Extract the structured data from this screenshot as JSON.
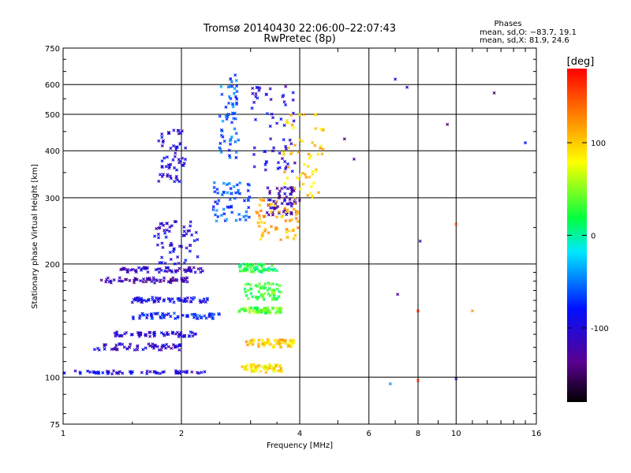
{
  "chart_data": {
    "type": "scatter",
    "title": "Tromsø 20140430 22:06:00–22:07:43",
    "subtitle": "RwPretec (8p)",
    "xlabel": "Frequency [MHz]",
    "ylabel": "Stationary phase Virtual Height [km]",
    "x_scale": "log",
    "y_scale": "log",
    "xlim": [
      1,
      16
    ],
    "ylim": [
      75,
      750
    ],
    "x_ticks": [
      "1",
      "2",
      "4",
      "6",
      "8",
      "10",
      "16"
    ],
    "y_ticks": [
      "75",
      "100",
      "200",
      "300",
      "400",
      "500",
      "600",
      "750"
    ],
    "grid": true,
    "stats": {
      "header": "Phases",
      "line_o": "mean, sd,O: −83.7, 19.1",
      "line_x": "mean, sd,X:  81.9, 24.6"
    },
    "colorbar": {
      "label": "[deg]",
      "range": [
        -180,
        180
      ],
      "ticks": [
        "100",
        "0",
        "-100"
      ],
      "colormap": "rainbow (black→purple→blue→cyan→green→yellow→red)"
    },
    "series": [
      {
        "mode": "O",
        "traces": [
          {
            "x": [
              1.0,
              2.3
            ],
            "y": [
              102,
              104
            ],
            "phase": -100
          },
          {
            "x": [
              1.2,
              2.0
            ],
            "y": [
              118,
              123
            ],
            "phase": -110
          },
          {
            "x": [
              1.35,
              2.2
            ],
            "y": [
              128,
              132
            ],
            "phase": -100
          },
          {
            "x": [
              1.5,
              2.5
            ],
            "y": [
              143,
              148
            ],
            "phase": -80
          },
          {
            "x": [
              1.5,
              2.4
            ],
            "y": [
              158,
              163
            ],
            "phase": -90
          },
          {
            "x": [
              1.25,
              2.1
            ],
            "y": [
              178,
              184
            ],
            "phase": -120
          },
          {
            "x": [
              1.4,
              2.3
            ],
            "y": [
              190,
              196
            ],
            "phase": -110
          },
          {
            "x": [
              1.7,
              2.2
            ],
            "y": [
              200,
              260
            ],
            "phase": -100
          },
          {
            "x": [
              1.75,
              2.05
            ],
            "y": [
              330,
              460
            ],
            "phase": -100
          },
          {
            "x": [
              2.4,
              3.0
            ],
            "y": [
              260,
              330
            ],
            "phase": -60
          },
          {
            "x": [
              2.5,
              2.8
            ],
            "y": [
              380,
              640
            ],
            "phase": -60
          },
          {
            "x": [
              3.3,
              4.0
            ],
            "y": [
              270,
              320
            ],
            "phase": -120
          },
          {
            "x": [
              3.0,
              3.9
            ],
            "y": [
              350,
              600
            ],
            "phase": -100
          }
        ]
      },
      {
        "mode": "X",
        "traces": [
          {
            "x": [
              2.85,
              3.6
            ],
            "y": [
              103,
              108
            ],
            "phase": 90
          },
          {
            "x": [
              2.9,
              3.9
            ],
            "y": [
              120,
              126
            ],
            "phase": 100
          },
          {
            "x": [
              2.8,
              3.6
            ],
            "y": [
              148,
              153
            ],
            "phase": 40
          },
          {
            "x": [
              2.9,
              3.6
            ],
            "y": [
              160,
              178
            ],
            "phase": 30
          },
          {
            "x": [
              2.8,
              3.5
            ],
            "y": [
              190,
              200
            ],
            "phase": 20
          },
          {
            "x": [
              3.1,
              4.0
            ],
            "y": [
              230,
              300
            ],
            "phase": 110
          },
          {
            "x": [
              3.6,
              4.6
            ],
            "y": [
              300,
              500
            ],
            "phase": 100
          }
        ]
      },
      {
        "mode": "scattered",
        "points": [
          {
            "x": 7.0,
            "y": 620,
            "phase": -110
          },
          {
            "x": 7.5,
            "y": 590,
            "phase": -100
          },
          {
            "x": 9.5,
            "y": 470,
            "phase": -140
          },
          {
            "x": 12.5,
            "y": 570,
            "phase": -150
          },
          {
            "x": 15.0,
            "y": 420,
            "phase": -80
          },
          {
            "x": 8.1,
            "y": 230,
            "phase": -120
          },
          {
            "x": 10.0,
            "y": 255,
            "phase": 150
          },
          {
            "x": 7.1,
            "y": 166,
            "phase": -130
          },
          {
            "x": 8.0,
            "y": 150,
            "phase": 170
          },
          {
            "x": 11.0,
            "y": 150,
            "phase": 120
          },
          {
            "x": 8.0,
            "y": 98,
            "phase": 160
          },
          {
            "x": 10.0,
            "y": 99,
            "phase": -120
          },
          {
            "x": 6.8,
            "y": 96,
            "phase": -40
          },
          {
            "x": 5.2,
            "y": 430,
            "phase": -140
          },
          {
            "x": 5.5,
            "y": 380,
            "phase": -130
          }
        ]
      }
    ]
  }
}
